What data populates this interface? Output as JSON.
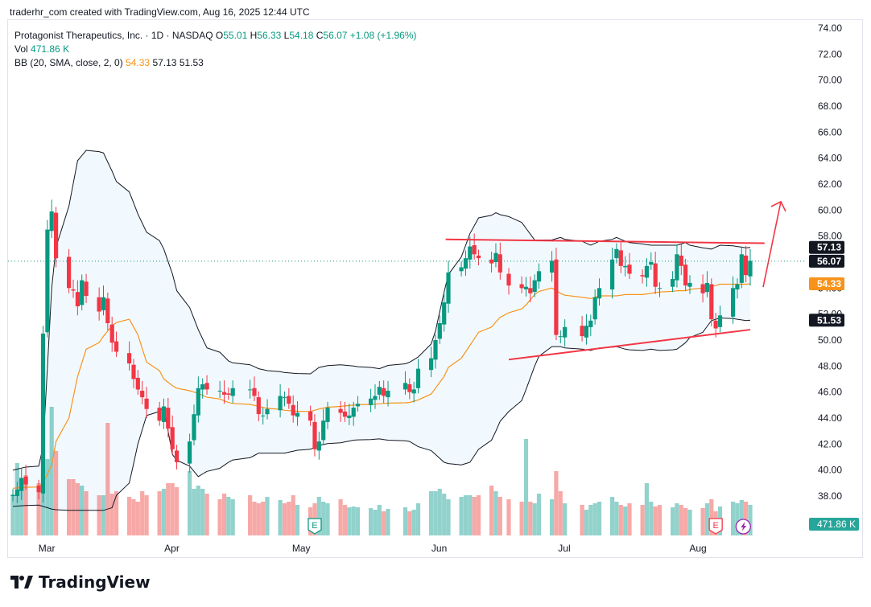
{
  "caption": "traderhr_com created with TradingView.com, Aug 16, 2025 12:44 UTC",
  "legend": {
    "symbol": "Protagonist Therapeutics, Inc. · 1D · NASDAQ",
    "o_label": "O",
    "o_value": "55.01",
    "h_label": "H",
    "h_value": "56.33",
    "l_label": "L",
    "l_value": "54.18",
    "c_label": "C",
    "c_value": "56.07",
    "change": "+1.08 (+1.96%)",
    "vol_label": "Vol",
    "vol_value": "471.86 K",
    "bb_label": "BB (20, SMA, close, 2, 0)",
    "bb_basis": "54.33",
    "bb_upper": "57.13",
    "bb_lower": "51.53"
  },
  "brand": {
    "name": "TradingView",
    "logo_icon": "tradingview-logo-icon"
  },
  "colors": {
    "up": "#089981",
    "down": "#f23645",
    "basis": "#f7931a",
    "bands": "#131722",
    "fill": "#2196f3",
    "vol_up": "#26a69a",
    "vol_down": "#ef5350",
    "trend": "#f23645"
  },
  "chart_data": {
    "type": "candlestick",
    "y_axis": {
      "ylim": [
        36.9,
        74.8
      ],
      "ticks": [
        "74.00",
        "72.00",
        "70.00",
        "68.00",
        "66.00",
        "64.00",
        "62.00",
        "60.00",
        "58.00",
        "56.00",
        "54.00",
        "52.00",
        "50.00",
        "48.00",
        "46.00",
        "44.00",
        "42.00",
        "40.00",
        "38.00"
      ]
    },
    "x_axis": {
      "labels": [
        "Mar",
        "Apr",
        "May",
        "Jun",
        "Jul",
        "Aug"
      ]
    },
    "price_labels": [
      {
        "value": 57.13,
        "text": "57.13",
        "style": "dark"
      },
      {
        "value": 56.07,
        "text": "56.07",
        "style": "dark"
      },
      {
        "value": 54.33,
        "text": "54.33",
        "style": "orange"
      },
      {
        "value": 51.53,
        "text": "51.53",
        "style": "dark"
      }
    ],
    "volume_label": "471.86 K",
    "last_price": 56.07,
    "earnings_markers": [
      {
        "date": "2025-05-06",
        "label": "E"
      },
      {
        "date": "2025-08-07",
        "label": "E"
      }
    ],
    "dividend_marker": {
      "date": "2025-08-13",
      "icon": "lightning-icon"
    },
    "dates": [
      "2025-02-25",
      "2025-02-26",
      "2025-02-27",
      "2025-02-28",
      "2025-03-03",
      "2025-03-04",
      "2025-03-05",
      "2025-03-06",
      "2025-03-07",
      "2025-03-10",
      "2025-03-11",
      "2025-03-12",
      "2025-03-13",
      "2025-03-14",
      "2025-03-17",
      "2025-03-18",
      "2025-03-19",
      "2025-03-20",
      "2025-03-21",
      "2025-03-24",
      "2025-03-25",
      "2025-03-26",
      "2025-03-27",
      "2025-03-28",
      "2025-03-31",
      "2025-04-01",
      "2025-04-02",
      "2025-04-03",
      "2025-04-04",
      "2025-04-07",
      "2025-04-08",
      "2025-04-09",
      "2025-04-10",
      "2025-04-11",
      "2025-04-14",
      "2025-04-15",
      "2025-04-16",
      "2025-04-17",
      "2025-04-21",
      "2025-04-22",
      "2025-04-23",
      "2025-04-24",
      "2025-04-25",
      "2025-04-28",
      "2025-04-29",
      "2025-04-30",
      "2025-05-01",
      "2025-05-02",
      "2025-05-05",
      "2025-05-06",
      "2025-05-07",
      "2025-05-08",
      "2025-05-09",
      "2025-05-12",
      "2025-05-13",
      "2025-05-14",
      "2025-05-15",
      "2025-05-16",
      "2025-05-19",
      "2025-05-20",
      "2025-05-21",
      "2025-05-22",
      "2025-05-23",
      "2025-05-27",
      "2025-05-28",
      "2025-05-29",
      "2025-05-30",
      "2025-06-02",
      "2025-06-03",
      "2025-06-04",
      "2025-06-05",
      "2025-06-06",
      "2025-06-09",
      "2025-06-10",
      "2025-06-11",
      "2025-06-12",
      "2025-06-13",
      "2025-06-16",
      "2025-06-17",
      "2025-06-18",
      "2025-06-20",
      "2025-06-23",
      "2025-06-24",
      "2025-06-25",
      "2025-06-26",
      "2025-06-27",
      "2025-06-30",
      "2025-07-01",
      "2025-07-02",
      "2025-07-03",
      "2025-07-07",
      "2025-07-08",
      "2025-07-09",
      "2025-07-10",
      "2025-07-11",
      "2025-07-14",
      "2025-07-15",
      "2025-07-16",
      "2025-07-17",
      "2025-07-18",
      "2025-07-21",
      "2025-07-22",
      "2025-07-23",
      "2025-07-24",
      "2025-07-25",
      "2025-07-28",
      "2025-07-29",
      "2025-07-30",
      "2025-07-31",
      "2025-08-01",
      "2025-08-04",
      "2025-08-05",
      "2025-08-06",
      "2025-08-07",
      "2025-08-08",
      "2025-08-11",
      "2025-08-12",
      "2025-08-13",
      "2025-08-14",
      "2025-08-15"
    ],
    "close": [
      38.1,
      38.5,
      39.4,
      38.9,
      38.3,
      50.5,
      58.5,
      59.9,
      56.3,
      54.0,
      53.8,
      52.6,
      54.6,
      53.4,
      52.2,
      53.3,
      51.3,
      49.8,
      49.1,
      48.2,
      47.0,
      46.2,
      45.6,
      44.7,
      43.8,
      44.9,
      43.2,
      41.6,
      40.6,
      42.2,
      44.3,
      46.3,
      46.6,
      46.2,
      46.1,
      45.8,
      45.8,
      46.3,
      46.2,
      45.7,
      44.3,
      44.2,
      44.7,
      45.7,
      45.6,
      45.1,
      44.2,
      44.4,
      43.8,
      41.6,
      42.2,
      43.8,
      44.8,
      44.4,
      44.1,
      44.2,
      44.8,
      45.1,
      45.5,
      45.7,
      46.4,
      45.7,
      46.1,
      46.7,
      46.0,
      46.2,
      47.8,
      48.6,
      50.0,
      51.3,
      52.9,
      55.2,
      55.6,
      56.3,
      57.2,
      56.6,
      56.3,
      55.9,
      56.7,
      55.2,
      54.2,
      54.0,
      54.1,
      53.6,
      54.6,
      55.3,
      56.1,
      50.4,
      50.3,
      51.0,
      50.3,
      51.1,
      51.5,
      53.3,
      54.0,
      56.2,
      57.0,
      55.7,
      55.7,
      55.1,
      54.9,
      55.7,
      56.0,
      54.1,
      54.0,
      54.7,
      56.6,
      55.7,
      54.2,
      54.4,
      53.6,
      54.4,
      51.6,
      50.9,
      51.9,
      54.0,
      54.3,
      56.6,
      55.0,
      56.1
    ],
    "upper_band": [],
    "notes": {
      "upper_band": [
        [
          0,
          40.0
        ],
        [
          4,
          40.3
        ],
        [
          5,
          41.8
        ],
        [
          7,
          54.0
        ],
        [
          9,
          60.3
        ],
        [
          11,
          63.8
        ],
        [
          13,
          64.6
        ],
        [
          15,
          64.4
        ],
        [
          17,
          63.0
        ],
        [
          19,
          61.4
        ],
        [
          21,
          59.7
        ],
        [
          23,
          58.3
        ],
        [
          25,
          57.0
        ],
        [
          27,
          55.1
        ],
        [
          29,
          52.5
        ],
        [
          31,
          50.8
        ],
        [
          33,
          49.4
        ],
        [
          36,
          48.4
        ],
        [
          40,
          47.8
        ],
        [
          44,
          47.5
        ],
        [
          48,
          47.4
        ],
        [
          50,
          47.9
        ],
        [
          53,
          48.1
        ],
        [
          56,
          48.0
        ],
        [
          60,
          47.8
        ],
        [
          64,
          48.3
        ],
        [
          66,
          48.7
        ],
        [
          68,
          50.7
        ],
        [
          70,
          53.7
        ],
        [
          72,
          56.4
        ],
        [
          74,
          58.2
        ],
        [
          76,
          59.4
        ],
        [
          78,
          59.8
        ],
        [
          80,
          59.5
        ],
        [
          82,
          58.6
        ],
        [
          84,
          57.7
        ],
        [
          86,
          57.7
        ],
        [
          88,
          57.9
        ],
        [
          90,
          57.6
        ],
        [
          92,
          57.3
        ],
        [
          94,
          57.6
        ],
        [
          96,
          57.9
        ],
        [
          98,
          57.6
        ],
        [
          100,
          57.4
        ],
        [
          102,
          57.3
        ],
        [
          104,
          57.3
        ],
        [
          106,
          57.3
        ],
        [
          108,
          57.5
        ],
        [
          110,
          57.1
        ],
        [
          112,
          57.0
        ],
        [
          114,
          57.3
        ],
        [
          116,
          57.2
        ],
        [
          118,
          57.1
        ],
        [
          119,
          57.13
        ]
      ],
      "lower_band": [
        [
          0,
          37.2
        ],
        [
          4,
          37.3
        ],
        [
          5,
          37.2
        ],
        [
          7,
          37.0
        ],
        [
          9,
          36.9
        ],
        [
          11,
          36.9
        ],
        [
          13,
          36.9
        ],
        [
          15,
          36.9
        ],
        [
          17,
          37.1
        ],
        [
          19,
          39.0
        ],
        [
          21,
          42.0
        ],
        [
          23,
          44.2
        ],
        [
          25,
          44.8
        ],
        [
          27,
          41.2
        ],
        [
          29,
          40.3
        ],
        [
          31,
          39.5
        ],
        [
          33,
          39.9
        ],
        [
          36,
          40.6
        ],
        [
          40,
          41.3
        ],
        [
          44,
          41.3
        ],
        [
          48,
          41.6
        ],
        [
          50,
          41.9
        ],
        [
          53,
          42.1
        ],
        [
          56,
          42.3
        ],
        [
          60,
          42.4
        ],
        [
          64,
          42.2
        ],
        [
          66,
          41.8
        ],
        [
          68,
          41.2
        ],
        [
          70,
          40.6
        ],
        [
          72,
          40.4
        ],
        [
          74,
          40.6
        ],
        [
          76,
          41.6
        ],
        [
          78,
          43.0
        ],
        [
          80,
          44.5
        ],
        [
          82,
          46.2
        ],
        [
          84,
          48.0
        ],
        [
          86,
          49.5
        ],
        [
          88,
          49.5
        ],
        [
          90,
          49.3
        ],
        [
          92,
          49.2
        ],
        [
          94,
          49.4
        ],
        [
          96,
          49.5
        ],
        [
          98,
          49.3
        ],
        [
          100,
          49.2
        ],
        [
          102,
          49.3
        ],
        [
          104,
          49.2
        ],
        [
          106,
          49.3
        ],
        [
          108,
          49.8
        ],
        [
          110,
          50.6
        ],
        [
          112,
          51.5
        ],
        [
          114,
          51.7
        ],
        [
          116,
          51.6
        ],
        [
          118,
          51.5
        ],
        [
          119,
          51.53
        ]
      ],
      "basis": [
        [
          0,
          38.6
        ],
        [
          4,
          38.7
        ],
        [
          5,
          39.0
        ],
        [
          7,
          40.4
        ],
        [
          9,
          44.0
        ],
        [
          11,
          47.2
        ],
        [
          13,
          49.3
        ],
        [
          15,
          50.3
        ],
        [
          17,
          51.1
        ],
        [
          19,
          51.6
        ],
        [
          21,
          50.4
        ],
        [
          23,
          48.3
        ],
        [
          25,
          47.0
        ],
        [
          27,
          46.5
        ],
        [
          29,
          46.1
        ],
        [
          31,
          45.9
        ],
        [
          33,
          45.6
        ],
        [
          36,
          45.2
        ],
        [
          40,
          44.9
        ],
        [
          44,
          44.6
        ],
        [
          48,
          44.5
        ],
        [
          50,
          44.7
        ],
        [
          53,
          44.9
        ],
        [
          56,
          45.0
        ],
        [
          60,
          45.1
        ],
        [
          64,
          45.2
        ],
        [
          66,
          45.4
        ],
        [
          68,
          46.3
        ],
        [
          70,
          47.2
        ],
        [
          72,
          48.6
        ],
        [
          74,
          49.6
        ],
        [
          76,
          50.6
        ],
        [
          78,
          51.4
        ],
        [
          80,
          52.1
        ],
        [
          82,
          52.7
        ],
        [
          84,
          53.5
        ],
        [
          86,
          54.0
        ],
        [
          88,
          53.6
        ],
        [
          90,
          53.3
        ],
        [
          92,
          53.2
        ],
        [
          94,
          53.4
        ],
        [
          96,
          53.4
        ],
        [
          98,
          53.5
        ],
        [
          100,
          53.5
        ],
        [
          102,
          53.6
        ],
        [
          104,
          53.7
        ],
        [
          106,
          53.8
        ],
        [
          108,
          53.8
        ],
        [
          110,
          54.0
        ],
        [
          112,
          54.1
        ],
        [
          114,
          54.3
        ],
        [
          116,
          54.3
        ],
        [
          118,
          54.3
        ],
        [
          119,
          54.33
        ]
      ]
    },
    "resistance_line": {
      "from": [
        "2025-06-02",
        57.75
      ],
      "to": [
        "2025-08-17",
        57.45
      ]
    },
    "support_line": {
      "from": [
        "2025-06-20",
        48.5
      ],
      "to": [
        "2025-08-15",
        50.8
      ]
    },
    "arrow_projection": {
      "from": [
        "2025-08-15",
        55.0
      ],
      "to": [
        "2025-08-19",
        60.4
      ]
    },
    "volume": [
      0.5,
      0.9,
      0.7,
      0.75,
      0.65,
      0.85,
      0.95,
      1.6,
      1.05,
      0.7,
      0.7,
      0.65,
      0.62,
      0.55,
      0.5,
      0.5,
      1.4,
      0.52,
      0.55,
      0.48,
      0.45,
      0.42,
      0.55,
      0.5,
      0.55,
      0.58,
      0.65,
      0.65,
      0.6,
      0.8,
      0.58,
      0.62,
      0.58,
      0.52,
      0.45,
      0.52,
      0.48,
      0.45,
      0.5,
      0.42,
      0.4,
      0.42,
      0.48,
      0.44,
      0.4,
      0.42,
      0.5,
      0.38,
      0.35,
      0.4,
      0.48,
      0.42,
      0.4,
      0.45,
      0.38,
      0.35,
      0.36,
      0.35,
      0.34,
      0.32,
      0.38,
      0.3,
      0.33,
      0.35,
      0.3,
      0.32,
      0.4,
      0.55,
      0.55,
      0.58,
      0.52,
      0.45,
      0.48,
      0.5,
      0.5,
      0.48,
      0.5,
      0.62,
      0.55,
      0.48,
      0.45,
      0.42,
      1.2,
      0.42,
      0.4,
      0.52,
      0.45,
      0.8,
      0.55,
      0.4,
      0.38,
      0.32,
      0.38,
      0.4,
      0.42,
      0.48,
      0.42,
      0.38,
      0.36,
      0.4,
      0.38,
      0.65,
      0.42,
      0.36,
      0.38,
      0.35,
      0.4,
      0.38,
      0.34,
      0.32,
      0.34,
      0.4,
      0.45,
      0.3,
      0.36,
      0.42,
      0.4,
      0.44,
      0.42,
      0.38
    ]
  }
}
